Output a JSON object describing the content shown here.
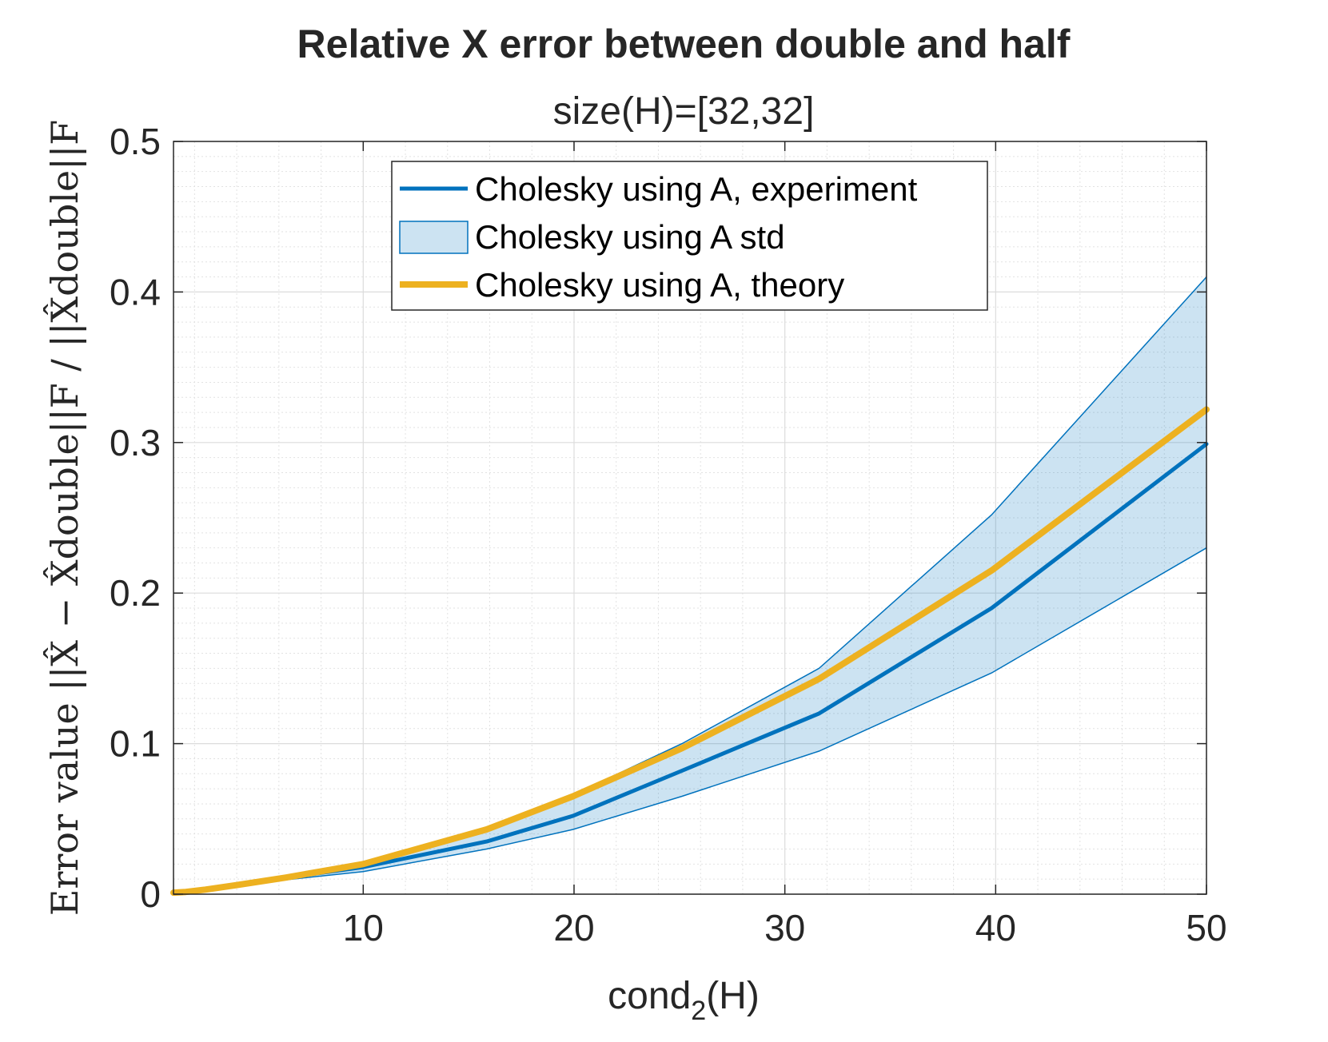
{
  "chart_data": {
    "type": "line",
    "title": "Relative X error between double and half",
    "subtitle": "size(H)=[32,32]",
    "xlabel_main": "cond",
    "xlabel_sub": "2",
    "xlabel_tail": "(H)",
    "ylabel": "Error value ||X̂ − X̂double||F / ||X̂double||F",
    "xlim": [
      1,
      50
    ],
    "ylim": [
      0,
      0.5
    ],
    "x_ticks": [
      10,
      20,
      30,
      40,
      50
    ],
    "y_ticks": [
      0,
      0.1,
      0.2,
      0.3,
      0.4,
      0.5
    ],
    "y_tick_labels": [
      "0",
      "0.1",
      "0.2",
      "0.3",
      "0.4",
      "0.5"
    ],
    "grid": true,
    "minor_grid": true,
    "legend_position": "top-center",
    "x": [
      1,
      1.58,
      2.51,
      3.98,
      6.31,
      10,
      15.85,
      19.95,
      25.12,
      31.62,
      39.81,
      50
    ],
    "series": [
      {
        "name": "Cholesky using A, experiment",
        "kind": "line",
        "color": "#0072BD",
        "values": [
          0.001,
          0.0015,
          0.003,
          0.006,
          0.011,
          0.018,
          0.035,
          0.052,
          0.082,
          0.12,
          0.19,
          0.299
        ]
      },
      {
        "name": "Cholesky using A std",
        "kind": "band",
        "color": "#0072BD",
        "lower": [
          0.001,
          0.0014,
          0.0028,
          0.0055,
          0.0095,
          0.015,
          0.03,
          0.043,
          0.065,
          0.095,
          0.147,
          0.23
        ],
        "upper": [
          0.001,
          0.0016,
          0.0032,
          0.0065,
          0.012,
          0.021,
          0.042,
          0.066,
          0.1,
          0.15,
          0.252,
          0.41
        ]
      },
      {
        "name": "Cholesky using A, theory",
        "kind": "line",
        "color": "#EDB120",
        "values": [
          0.001,
          0.0015,
          0.003,
          0.006,
          0.011,
          0.02,
          0.043,
          0.065,
          0.097,
          0.143,
          0.215,
          0.322
        ]
      }
    ]
  }
}
